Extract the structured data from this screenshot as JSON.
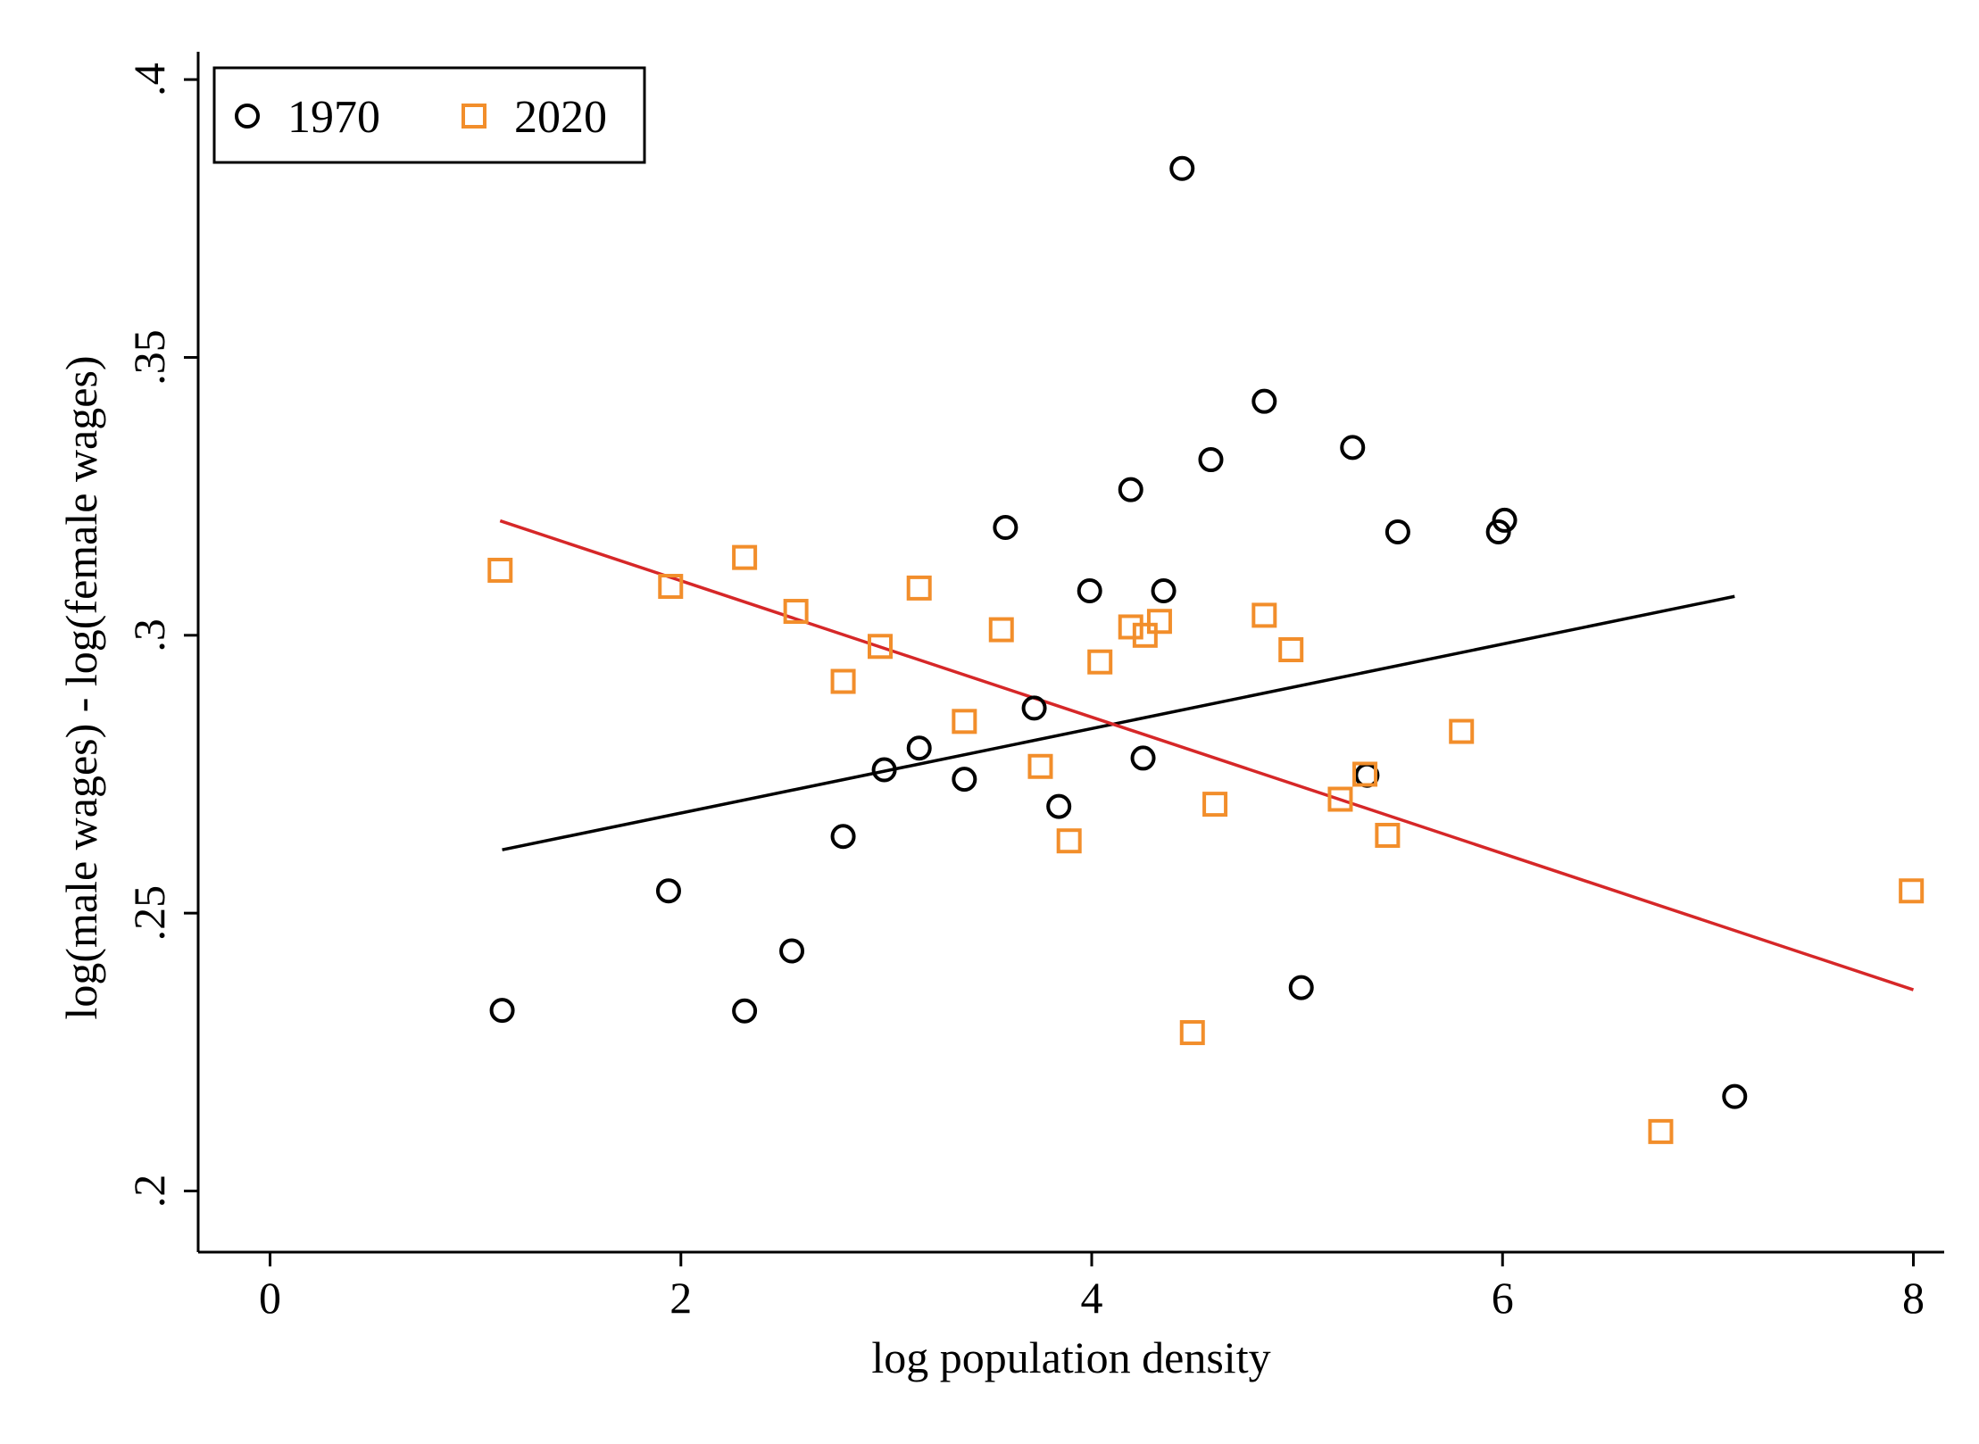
{
  "chart_data": {
    "type": "scatter",
    "title": "",
    "xlabel": "log population density",
    "ylabel": "log(male wages) - log(female wages)",
    "xlim": [
      -0.35,
      8.15
    ],
    "ylim": [
      0.189,
      0.405
    ],
    "x_ticks": [
      0,
      2,
      4,
      6,
      8
    ],
    "x_tick_labels": [
      "0",
      "2",
      "4",
      "6",
      "8"
    ],
    "y_ticks": [
      0.2,
      0.25,
      0.3,
      0.35,
      0.4
    ],
    "y_tick_labels": [
      ".2",
      ".25",
      ".3",
      ".35",
      ".4"
    ],
    "grid": false,
    "legend_position": "top-left",
    "series": [
      {
        "name": "1970",
        "marker": "circle",
        "color": "#000000",
        "points": [
          [
            1.13,
            0.2325
          ],
          [
            1.94,
            0.254
          ],
          [
            2.31,
            0.2324
          ],
          [
            2.54,
            0.2432
          ],
          [
            2.79,
            0.2638
          ],
          [
            2.99,
            0.2758
          ],
          [
            3.16,
            0.2797
          ],
          [
            3.38,
            0.2741
          ],
          [
            3.58,
            0.3194
          ],
          [
            3.72,
            0.2869
          ],
          [
            3.84,
            0.2692
          ],
          [
            3.99,
            0.308
          ],
          [
            4.19,
            0.3262
          ],
          [
            4.25,
            0.2779
          ],
          [
            4.35,
            0.308
          ],
          [
            4.44,
            0.384
          ],
          [
            4.58,
            0.3316
          ],
          [
            4.84,
            0.3421
          ],
          [
            5.02,
            0.2366
          ],
          [
            5.27,
            0.3338
          ],
          [
            5.34,
            0.2748
          ],
          [
            5.49,
            0.3186
          ],
          [
            5.98,
            0.3186
          ],
          [
            6.01,
            0.3207
          ],
          [
            7.13,
            0.217
          ]
        ],
        "fit_line": {
          "x": [
            1.13,
            7.13
          ],
          "y": [
            0.2614,
            0.307
          ],
          "color": "#000000"
        }
      },
      {
        "name": "2020",
        "marker": "square",
        "color": "#f28e2b",
        "points": [
          [
            1.12,
            0.3117
          ],
          [
            1.95,
            0.3088
          ],
          [
            2.31,
            0.314
          ],
          [
            2.56,
            0.3043
          ],
          [
            2.79,
            0.2917
          ],
          [
            2.97,
            0.298
          ],
          [
            3.16,
            0.3085
          ],
          [
            3.38,
            0.2845
          ],
          [
            3.56,
            0.301
          ],
          [
            3.75,
            0.2764
          ],
          [
            3.89,
            0.263
          ],
          [
            4.04,
            0.2952
          ],
          [
            4.19,
            0.3015
          ],
          [
            4.26,
            0.3
          ],
          [
            4.33,
            0.3025
          ],
          [
            4.49,
            0.2285
          ],
          [
            4.6,
            0.2696
          ],
          [
            4.84,
            0.3036
          ],
          [
            4.97,
            0.2974
          ],
          [
            5.21,
            0.2705
          ],
          [
            5.33,
            0.275
          ],
          [
            5.44,
            0.264
          ],
          [
            5.8,
            0.2827
          ],
          [
            6.77,
            0.2107
          ],
          [
            7.99,
            0.254
          ]
        ],
        "fit_line": {
          "x": [
            1.12,
            8.0
          ],
          "y": [
            0.3206,
            0.2362
          ],
          "color": "#d62728"
        }
      }
    ]
  }
}
